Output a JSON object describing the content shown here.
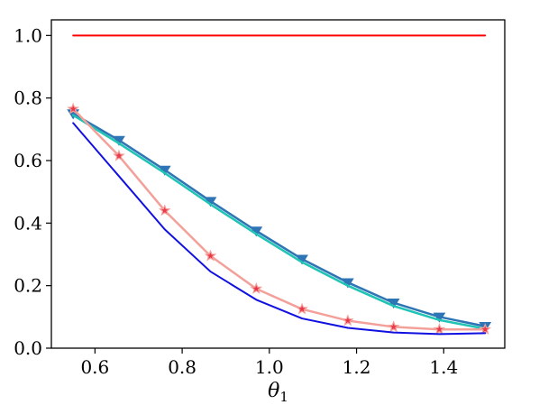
{
  "chart_data": {
    "type": "line",
    "title": "",
    "xlabel": "θ",
    "xlabel_subscript": "1",
    "ylabel": "",
    "xlim": [
      0.5,
      1.54
    ],
    "ylim": [
      0.0,
      1.05
    ],
    "x_ticks": [
      0.6,
      0.8,
      1.0,
      1.2,
      1.4
    ],
    "x_tick_labels": [
      "0.6",
      "0.8",
      "1.0",
      "1.2",
      "1.4"
    ],
    "y_ticks": [
      0.0,
      0.2,
      0.4,
      0.6,
      0.8,
      1.0
    ],
    "y_tick_labels": [
      "0.0",
      "0.2",
      "0.4",
      "0.6",
      "0.8",
      "1.0"
    ],
    "grid": false,
    "legend": "none",
    "x": [
      0.55,
      0.655,
      0.76,
      0.865,
      0.97,
      1.075,
      1.18,
      1.285,
      1.39,
      1.495
    ],
    "series": [
      {
        "color": "#ff0000",
        "marker": "none",
        "line_width": 2,
        "values": [
          1.0,
          1.0,
          1.0,
          1.0,
          1.0,
          1.0,
          1.0,
          1.0,
          1.0,
          1.0
        ]
      },
      {
        "color": "#2e75b6",
        "marker": "triangle-down",
        "line_width": 2.5,
        "values": [
          0.75,
          0.665,
          0.57,
          0.47,
          0.375,
          0.285,
          0.21,
          0.145,
          0.1,
          0.07
        ]
      },
      {
        "color": "#1fc4b4",
        "marker": "none",
        "line_width": 2.5,
        "values": [
          0.745,
          0.655,
          0.56,
          0.46,
          0.365,
          0.275,
          0.2,
          0.135,
          0.09,
          0.062
        ]
      },
      {
        "color": "#f4a09a",
        "marker": "star",
        "marker_color": "#e8384a",
        "line_width": 2.5,
        "values": [
          0.765,
          0.615,
          0.44,
          0.295,
          0.19,
          0.125,
          0.088,
          0.068,
          0.06,
          0.06
        ]
      },
      {
        "color": "#1010e0",
        "marker": "none",
        "line_width": 2,
        "values": [
          0.72,
          0.55,
          0.38,
          0.245,
          0.155,
          0.095,
          0.065,
          0.05,
          0.045,
          0.048
        ]
      }
    ]
  }
}
